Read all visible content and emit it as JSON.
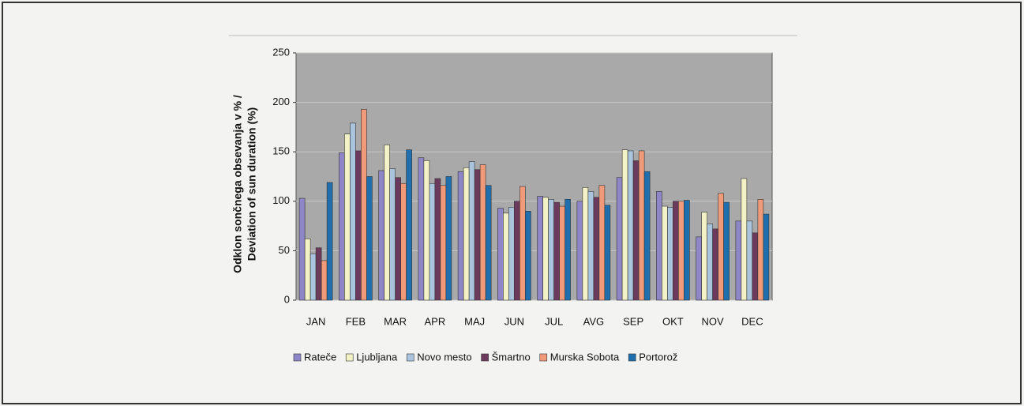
{
  "chart_data": {
    "type": "bar",
    "ylabel": [
      "Odklon sončnega obsevanja v % /",
      "Deviation of sun duration (%)"
    ],
    "categories": [
      "JAN",
      "FEB",
      "MAR",
      "APR",
      "MAJ",
      "JUN",
      "JUL",
      "AVG",
      "SEP",
      "OKT",
      "NOV",
      "DEC"
    ],
    "series": [
      {
        "name": "Rateče",
        "color": "#8e86c6",
        "values": [
          103,
          149,
          131,
          144,
          130,
          93,
          105,
          100,
          124,
          110,
          64,
          80
        ]
      },
      {
        "name": "Ljubljana",
        "color": "#f2f2c6",
        "values": [
          62,
          168,
          157,
          141,
          134,
          88,
          104,
          114,
          152,
          95,
          89,
          123
        ]
      },
      {
        "name": "Novo mesto",
        "color": "#a9c4dc",
        "values": [
          47,
          179,
          133,
          118,
          140,
          94,
          102,
          110,
          151,
          94,
          77,
          80
        ]
      },
      {
        "name": "Šmartno",
        "color": "#6b3a5c",
        "values": [
          53,
          151,
          124,
          123,
          132,
          100,
          99,
          104,
          141,
          100,
          72,
          68
        ]
      },
      {
        "name": "Murska Sobota",
        "color": "#f09a7a",
        "values": [
          40,
          193,
          118,
          116,
          137,
          115,
          95,
          116,
          151,
          100,
          108,
          102
        ]
      },
      {
        "name": "Portorož",
        "color": "#1f6fae",
        "values": [
          119,
          125,
          152,
          125,
          116,
          90,
          102,
          96,
          130,
          101,
          99,
          87
        ]
      }
    ],
    "ylim": [
      0,
      250
    ],
    "yticks": [
      0,
      50,
      100,
      150,
      200,
      250
    ],
    "grid": true,
    "legend": "bottom"
  }
}
